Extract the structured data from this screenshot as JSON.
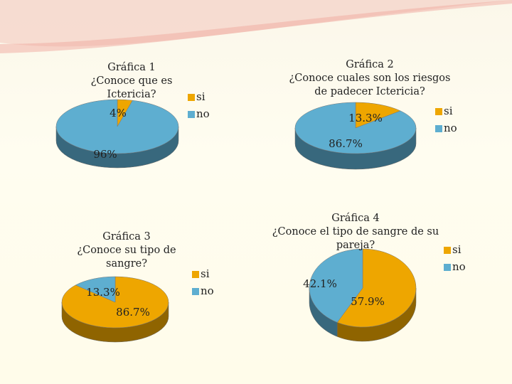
{
  "chart_data": [
    {
      "type": "pie",
      "title": "Gráfica 1\n¿Conoce que es\nIctericia?",
      "categories": [
        "si",
        "no"
      ],
      "values": [
        4,
        96
      ],
      "value_labels": [
        "4%",
        "96%"
      ],
      "colors": [
        "#eea600",
        "#5eaed0"
      ]
    },
    {
      "type": "pie",
      "title": "Gráfica 2\n¿Conoce cuales son los riesgos\nde padecer Ictericia?",
      "categories": [
        "si",
        "no"
      ],
      "values": [
        13.3,
        86.7
      ],
      "value_labels": [
        "13.3%",
        "86.7%"
      ],
      "colors": [
        "#eea600",
        "#5eaed0"
      ]
    },
    {
      "type": "pie",
      "title": "Gráfica 3\n¿Conoce su tipo de\nsangre?",
      "categories": [
        "si",
        "no"
      ],
      "values": [
        86.7,
        13.3
      ],
      "value_labels": [
        "86.7%",
        "13.3%"
      ],
      "colors": [
        "#eea600",
        "#5eaed0"
      ]
    },
    {
      "type": "pie",
      "title": "Gráfica 4\n¿Conoce el tipo de sangre de su\npareja?",
      "categories": [
        "si",
        "no"
      ],
      "values": [
        57.9,
        42.1
      ],
      "value_labels": [
        "57.9%",
        "42.1%"
      ],
      "colors": [
        "#eea600",
        "#5eaed0"
      ]
    }
  ]
}
